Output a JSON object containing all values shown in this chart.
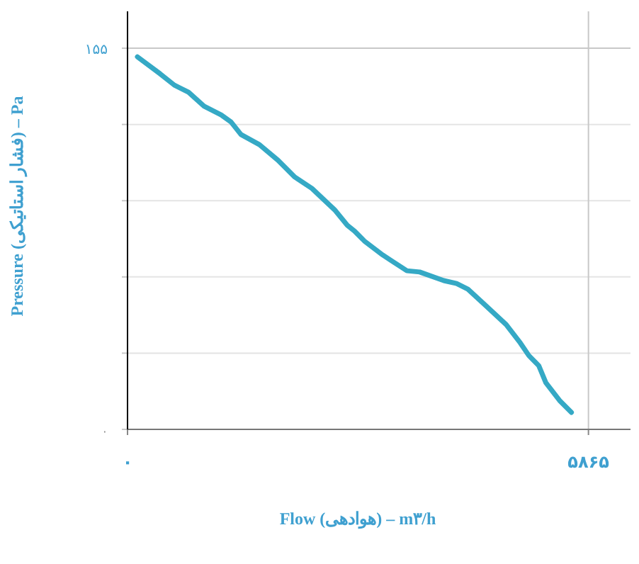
{
  "chart_data": {
    "type": "line",
    "xlabel": "Flow (هوادهی) – m۳/h",
    "ylabel": "Pressure (فشار استاتیکی) – Pa",
    "x": [
      126,
      415,
      596,
      776,
      974,
      1191,
      1317,
      1444,
      1678,
      1913,
      2129,
      2346,
      2635,
      2797,
      2887,
      3014,
      3248,
      3357,
      3555,
      3717,
      4024,
      4187,
      4331,
      4566,
      4818,
      4999,
      5107,
      5233,
      5323,
      5504,
      5648
    ],
    "series": [
      {
        "color": "#35a9c5",
        "values": [
          151.5,
          144.6,
          140.0,
          137.1,
          131.4,
          127.9,
          125.0,
          119.9,
          115.8,
          109.5,
          102.6,
          98.0,
          89.3,
          83.0,
          80.7,
          76.6,
          70.9,
          68.6,
          64.5,
          64.0,
          60.5,
          59.3,
          57.0,
          50.1,
          42.6,
          35.1,
          30.0,
          25.9,
          19.0,
          11.5,
          6.9
        ]
      }
    ],
    "xlim": [
      0,
      6400
    ],
    "ylim": [
      0,
      170
    ],
    "xticks": [
      {
        "value": 0,
        "label": "۰"
      },
      {
        "value": 5865,
        "label": "۵۸۶۵"
      }
    ],
    "yticks": [
      {
        "value": 0,
        "label": "۰"
      },
      {
        "value": 31,
        "label": null
      },
      {
        "value": 62,
        "label": null
      },
      {
        "value": 93,
        "label": null
      },
      {
        "value": 124,
        "label": null
      },
      {
        "value": 155,
        "label": "۱۵۵"
      }
    ],
    "grid": true
  }
}
